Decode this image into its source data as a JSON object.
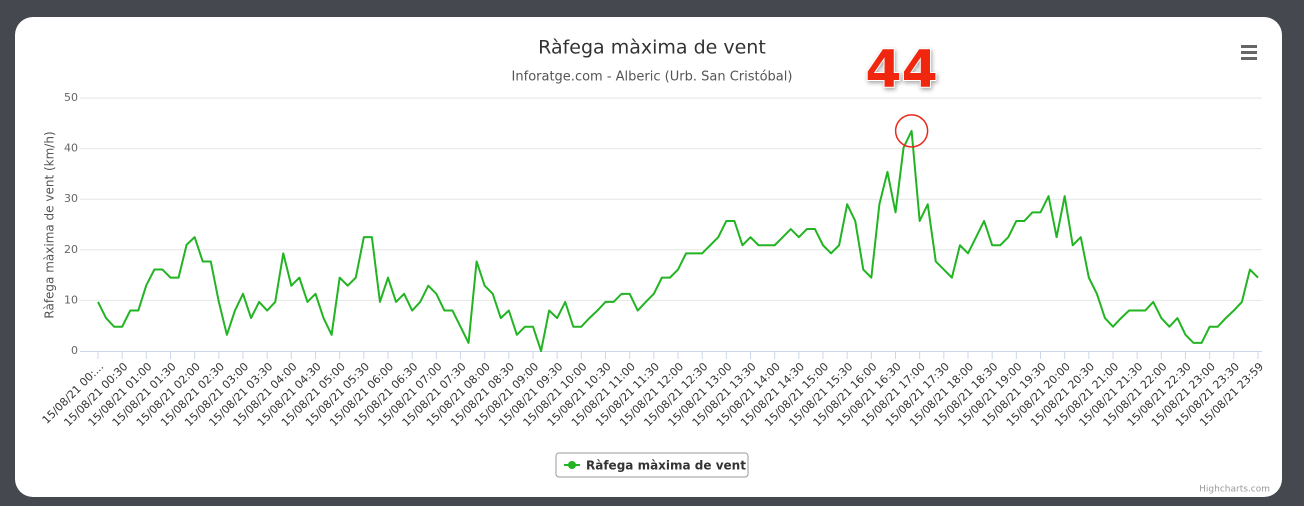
{
  "chart_data": {
    "type": "line",
    "title": "Ràfega màxima de vent",
    "subtitle": "Inforatge.com - Alberic (Urb. San Cristóbal)",
    "y_label": "Ràfega màxima de vent (km/h)",
    "annotation": "44",
    "credits": "Highcharts.com",
    "ylim": [
      0,
      50
    ],
    "yticks": [
      0,
      10,
      20,
      30,
      40,
      50
    ],
    "grid": true,
    "categories": [
      "15/08/21 00:...",
      null,
      null,
      "15/08/21 00:30",
      null,
      null,
      "15/08/21 01:00",
      null,
      null,
      "15/08/21 01:30",
      null,
      null,
      "15/08/21 02:00",
      null,
      null,
      "15/08/21 02:30",
      null,
      null,
      "15/08/21 03:00",
      null,
      null,
      "15/08/21 03:30",
      null,
      null,
      "15/08/21 04:00",
      null,
      null,
      "15/08/21 04:30",
      null,
      null,
      "15/08/21 05:00",
      null,
      null,
      "15/08/21 05:30",
      null,
      null,
      "15/08/21 06:00",
      null,
      null,
      "15/08/21 06:30",
      null,
      null,
      "15/08/21 07:00",
      null,
      null,
      "15/08/21 07:30",
      null,
      null,
      "15/08/21 08:00",
      null,
      null,
      "15/08/21 08:30",
      null,
      null,
      "15/08/21 09:00",
      null,
      null,
      "15/08/21 09:30",
      null,
      null,
      "15/08/21 10:00",
      null,
      null,
      "15/08/21 10:30",
      null,
      null,
      "15/08/21 11:00",
      null,
      null,
      "15/08/21 11:30",
      null,
      null,
      "15/08/21 12:00",
      null,
      null,
      "15/08/21 12:30",
      null,
      null,
      "15/08/21 13:00",
      null,
      null,
      "15/08/21 13:30",
      null,
      null,
      "15/08/21 14:00",
      null,
      null,
      "15/08/21 14:30",
      null,
      null,
      "15/08/21 15:00",
      null,
      null,
      "15/08/21 15:30",
      null,
      null,
      "15/08/21 16:00",
      null,
      null,
      "15/08/21 16:30",
      null,
      null,
      "15/08/21 17:00",
      null,
      null,
      "15/08/21 17:30",
      null,
      null,
      "15/08/21 18:00",
      null,
      null,
      "15/08/21 18:30",
      null,
      null,
      "15/08/21 19:00",
      null,
      null,
      "15/08/21 19:30",
      null,
      null,
      "15/08/21 20:00",
      null,
      null,
      "15/08/21 20:30",
      null,
      null,
      "15/08/21 21:00",
      null,
      null,
      "15/08/21 21:30",
      null,
      null,
      "15/08/21 22:00",
      null,
      null,
      "15/08/21 22:30",
      null,
      null,
      "15/08/21 23:00",
      null,
      null,
      "15/08/21 23:30",
      null,
      null,
      "15/08/21 23:59"
    ],
    "series": [
      {
        "name": "Ràfega màxima de vent",
        "color": "#22b422",
        "values": [
          9.7,
          6.5,
          4.8,
          4.8,
          8,
          8,
          13,
          16.1,
          16.1,
          14.5,
          14.5,
          21,
          22.5,
          17.7,
          17.7,
          9.7,
          3.2,
          8,
          11.3,
          6.5,
          9.7,
          8,
          9.7,
          19.3,
          12.9,
          14.5,
          9.7,
          11.3,
          6.5,
          3.2,
          14.5,
          12.9,
          14.5,
          22.5,
          22.5,
          9.7,
          14.5,
          9.7,
          11.3,
          8,
          9.7,
          12.9,
          11.3,
          8,
          8,
          4.8,
          1.6,
          17.7,
          12.9,
          11.3,
          6.5,
          8,
          3.2,
          4.8,
          4.8,
          0,
          8,
          6.5,
          9.7,
          4.8,
          4.8,
          6.5,
          8,
          9.7,
          9.7,
          11.3,
          11.3,
          8,
          9.7,
          11.3,
          14.5,
          14.5,
          16.1,
          19.3,
          19.3,
          19.3,
          20.9,
          22.5,
          25.7,
          25.7,
          20.9,
          22.5,
          20.9,
          20.9,
          20.9,
          22.5,
          24.1,
          22.5,
          24.1,
          24.1,
          20.9,
          19.3,
          20.9,
          29,
          25.7,
          16.1,
          14.5,
          29,
          35.4,
          27.4,
          40.2,
          43.5,
          25.7,
          29,
          17.7,
          16.1,
          14.5,
          20.9,
          19.3,
          22.5,
          25.7,
          20.9,
          20.9,
          22.5,
          25.7,
          25.7,
          27.4,
          27.4,
          30.6,
          22.5,
          30.6,
          20.9,
          22.5,
          14.5,
          11.3,
          6.5,
          4.8,
          6.5,
          8,
          8,
          8,
          9.7,
          6.5,
          4.8,
          6.5,
          3.2,
          1.6,
          1.6,
          4.8,
          4.8,
          6.5,
          8,
          9.7,
          16.1,
          14.5
        ]
      }
    ]
  }
}
